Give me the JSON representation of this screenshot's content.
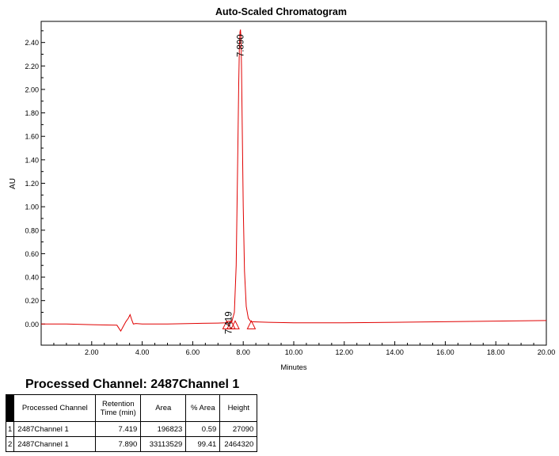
{
  "chart_data": {
    "type": "line",
    "title": "Auto-Scaled Chromatogram",
    "xlabel": "Minutes",
    "ylabel": "AU",
    "xlim": [
      0,
      20
    ],
    "ylim": [
      -0.18,
      2.58
    ],
    "x_ticks": [
      "2.00",
      "4.00",
      "6.00",
      "8.00",
      "10.00",
      "12.00",
      "14.00",
      "16.00",
      "18.00",
      "20.00"
    ],
    "y_ticks": [
      "0.00",
      "0.20",
      "0.40",
      "0.60",
      "0.80",
      "1.00",
      "1.20",
      "1.40",
      "1.60",
      "1.80",
      "2.00",
      "2.20",
      "2.40"
    ],
    "line_color": "#e00000",
    "series": [
      {
        "x": [
          0,
          1,
          2,
          3.0,
          3.15,
          3.25,
          3.35,
          3.45,
          3.52,
          3.58,
          3.65,
          3.75,
          4.0,
          5.0,
          6.0,
          7.0,
          7.3,
          7.42,
          7.55,
          7.65,
          7.72,
          7.78,
          7.82,
          7.85,
          7.87,
          7.89,
          7.91,
          7.93,
          7.96,
          8.0,
          8.05,
          8.12,
          8.2,
          8.3,
          9,
          10,
          12,
          14,
          16,
          18,
          20
        ],
        "y": [
          0.0,
          0.0,
          -0.005,
          -0.01,
          -0.06,
          -0.02,
          0.02,
          0.05,
          0.08,
          0.04,
          0.0,
          0.005,
          0.0,
          0.0,
          0.005,
          0.008,
          0.01,
          0.025,
          0.02,
          0.1,
          0.5,
          1.4,
          2.05,
          2.38,
          2.49,
          2.51,
          2.45,
          2.2,
          1.7,
          1.0,
          0.45,
          0.15,
          0.05,
          0.02,
          0.015,
          0.01,
          0.01,
          0.015,
          0.02,
          0.025,
          0.03
        ]
      }
    ],
    "peak_labels": [
      {
        "x": 7.419,
        "y": 0.0,
        "text": "7.419"
      },
      {
        "x": 7.89,
        "y": 2.51,
        "text": "7.890"
      }
    ],
    "peak_markers_x": [
      7.35,
      7.52,
      7.68,
      8.32
    ]
  },
  "section_title": "Processed Channel: 2487Channel 1",
  "table": {
    "headers": [
      "Processed Channel",
      "Retention Time (min)",
      "Area",
      "% Area",
      "Height"
    ],
    "rows": [
      {
        "idx": "1",
        "channel": "2487Channel 1",
        "rt": "7.419",
        "area": "196823",
        "pct": "0.59",
        "height": "27090"
      },
      {
        "idx": "2",
        "channel": "2487Channel 1",
        "rt": "7.890",
        "area": "33113529",
        "pct": "99.41",
        "height": "2464320"
      }
    ]
  }
}
